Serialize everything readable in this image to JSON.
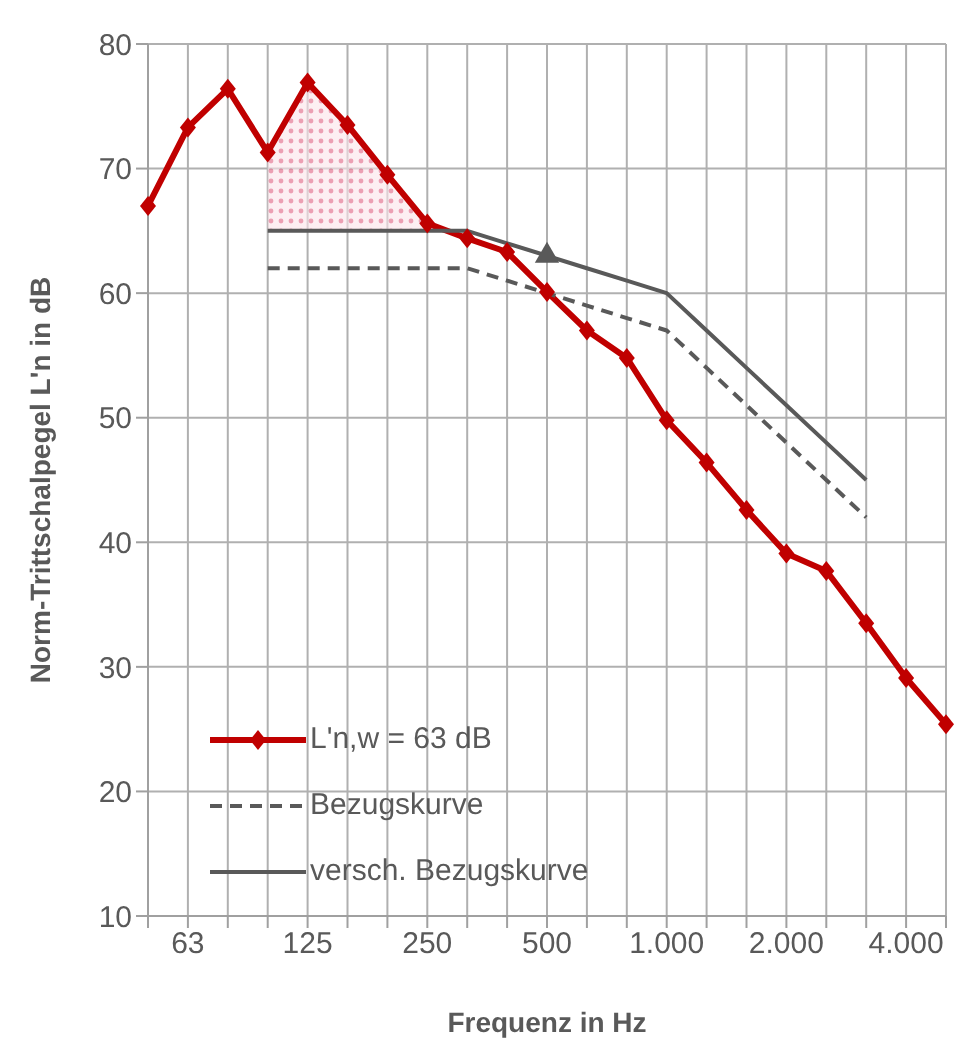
{
  "chart_data": {
    "type": "line",
    "xlabel": "Frequenz in Hz",
    "ylabel": "Norm-Trittschalpegel L'n in dB",
    "categories": [
      null,
      "63",
      null,
      null,
      "125",
      null,
      null,
      "250",
      null,
      null,
      "500",
      null,
      null,
      "1.000",
      null,
      null,
      "2.000",
      null,
      null,
      "4.000",
      null
    ],
    "ylim": [
      10,
      80
    ],
    "yticks": [
      10,
      20,
      30,
      40,
      50,
      60,
      70,
      80
    ],
    "grid": true,
    "legend": "bottom left",
    "series": [
      {
        "name": "L'n,w = 63 dB",
        "type": "line",
        "color": "#c00000",
        "marker": "diamond",
        "line_style": "solid",
        "values": [
          67.0,
          73.3,
          76.4,
          71.3,
          76.9,
          73.5,
          69.5,
          65.6,
          64.4,
          63.3,
          60.1,
          57.0,
          54.8,
          49.8,
          46.4,
          42.6,
          39.1,
          37.7,
          33.5,
          29.1,
          25.4
        ]
      },
      {
        "name": "Bezugskurve",
        "type": "line",
        "color": "#595959",
        "marker": "none",
        "line_style": "dashed",
        "values": [
          null,
          null,
          null,
          62,
          62,
          62,
          62,
          62,
          62,
          61,
          60,
          59,
          58,
          57,
          54,
          51,
          48,
          45,
          42,
          null,
          null
        ]
      },
      {
        "name": "versch. Bezugskurve",
        "type": "line",
        "color": "#595959",
        "marker": "none",
        "line_style": "solid",
        "values": [
          null,
          null,
          null,
          65,
          65,
          65,
          65,
          65,
          65,
          64,
          63,
          62,
          61,
          60,
          57,
          54,
          51,
          48,
          45,
          null,
          null
        ],
        "lower": [
          null,
          null,
          null,
          65,
          65,
          65,
          65,
          65,
          null,
          null,
          null,
          null,
          null,
          null,
          null,
          null,
          null,
          null,
          null,
          null,
          null
        ],
        "upper": [
          null,
          null,
          null,
          71.3,
          76.9,
          73.5,
          69.5,
          65.6,
          null,
          null,
          null,
          null,
          null,
          null,
          null,
          null,
          null,
          null,
          null,
          null,
          null
        ]
      },
      {
        "type": "scatter",
        "color": "#595959",
        "marker": "triangle",
        "values": [
          null,
          null,
          null,
          null,
          null,
          null,
          null,
          null,
          null,
          null,
          63,
          null,
          null,
          null,
          null,
          null,
          null,
          null,
          null,
          null,
          null
        ]
      }
    ]
  }
}
